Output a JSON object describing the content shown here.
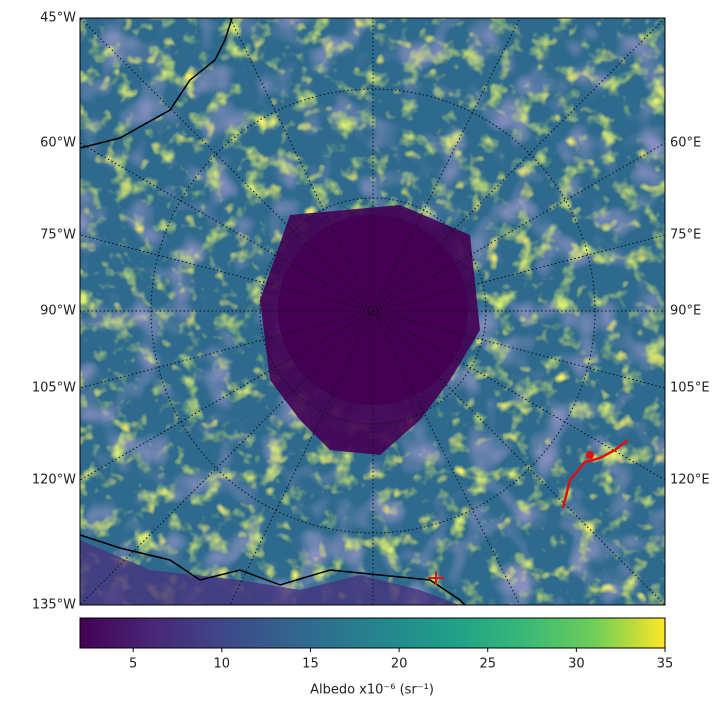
{
  "map": {
    "left_labels": [
      "45°W",
      "60°W",
      "75°W",
      "90°W",
      "105°W",
      "120°W",
      "135°W"
    ],
    "right_labels": [
      "60°E",
      "75°E",
      "90°E",
      "105°E",
      "120°E"
    ]
  },
  "colorbar": {
    "lim": [
      2,
      35
    ],
    "ticks": [
      5,
      10,
      15,
      20,
      25,
      30,
      35
    ],
    "label": "Albedo x10⁻⁶ (sr⁻¹)"
  }
}
